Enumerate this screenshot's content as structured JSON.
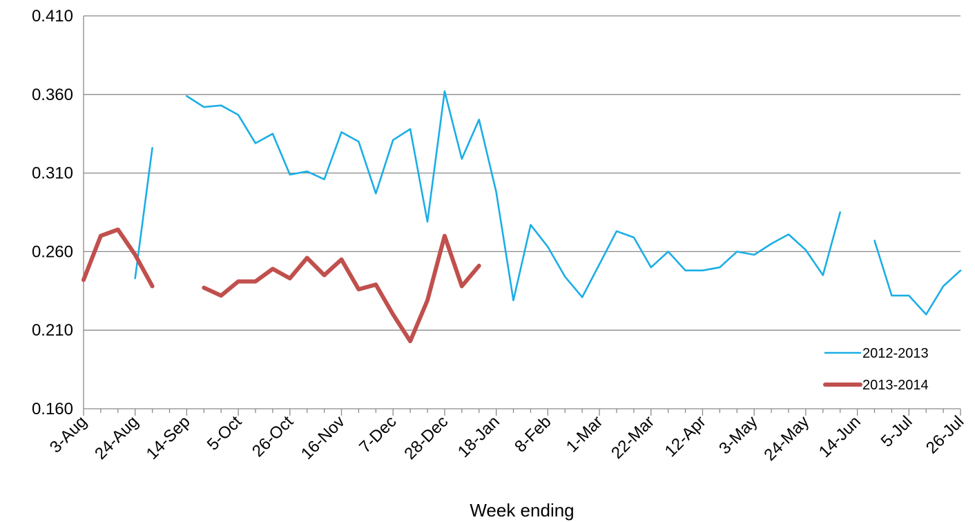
{
  "chart_data": {
    "type": "line",
    "xlabel": "Week ending",
    "ylabel": "",
    "ylim": [
      0.16,
      0.41
    ],
    "yticks": [
      "0.160",
      "0.210",
      "0.260",
      "0.310",
      "0.360",
      "0.410"
    ],
    "ytick_values": [
      0.16,
      0.21,
      0.26,
      0.31,
      0.36,
      0.41
    ],
    "x_tick_labels": [
      "3-Aug",
      "24-Aug",
      "14-Sep",
      "5-Oct",
      "26-Oct",
      "16-Nov",
      "7-Dec",
      "28-Dec",
      "18-Jan",
      "8-Feb",
      "1-Mar",
      "22-Mar",
      "12-Apr",
      "3-May",
      "24-May",
      "14-Jun",
      "5-Jul",
      "26-Jul"
    ],
    "x_tick_week_index": [
      0,
      3,
      6,
      9,
      12,
      15,
      18,
      21,
      24,
      27,
      30,
      33,
      36,
      39,
      42,
      45,
      48,
      51
    ],
    "week_count": 52,
    "grid": true,
    "legend_position": "bottom-right",
    "series": [
      {
        "name": "2012-2013",
        "color": "#1AAEE6",
        "values": [
          null,
          null,
          null,
          0.243,
          0.326,
          null,
          0.359,
          0.352,
          0.353,
          0.347,
          0.329,
          0.335,
          0.309,
          0.311,
          0.306,
          0.336,
          0.33,
          0.297,
          0.331,
          0.338,
          0.279,
          0.362,
          0.319,
          0.344,
          0.298,
          0.229,
          0.277,
          0.263,
          0.244,
          0.231,
          0.252,
          0.273,
          0.269,
          0.25,
          0.26,
          0.248,
          0.248,
          0.25,
          0.26,
          0.258,
          0.265,
          0.271,
          0.261,
          0.245,
          0.285,
          null,
          0.267,
          0.232,
          0.232,
          0.22,
          0.238,
          0.248
        ]
      },
      {
        "name": "2013-2014",
        "color": "#C0504D",
        "values": [
          0.242,
          0.27,
          0.274,
          0.258,
          0.238,
          null,
          null,
          0.237,
          0.232,
          0.241,
          0.241,
          0.249,
          0.243,
          0.256,
          0.245,
          0.255,
          0.236,
          0.239,
          0.22,
          0.203,
          0.229,
          0.27,
          0.238,
          0.251
        ]
      }
    ]
  }
}
